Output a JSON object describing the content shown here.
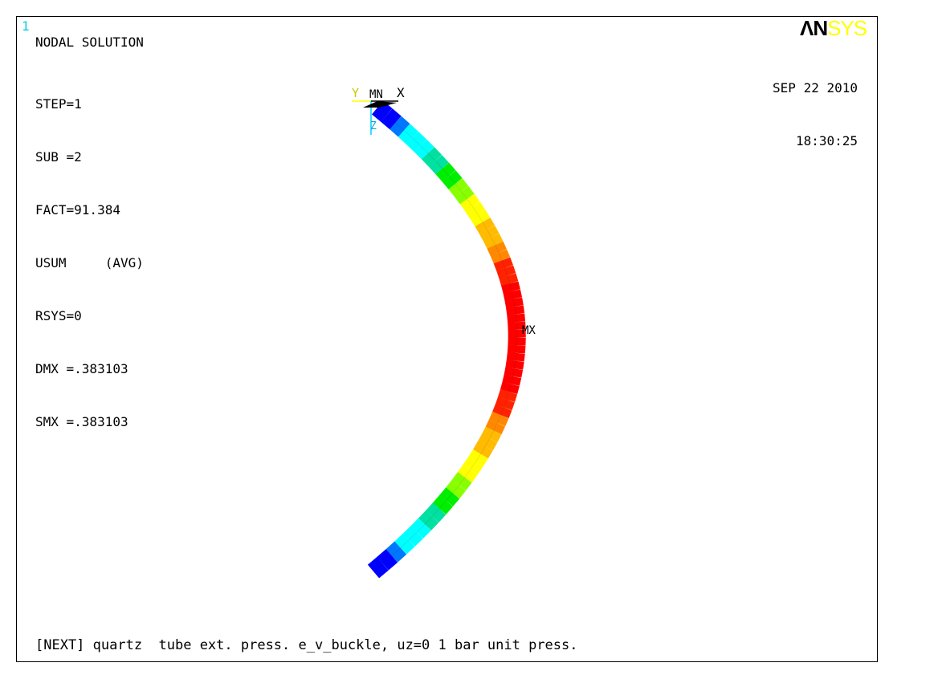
{
  "window_number": "1",
  "solution": {
    "title": "NODAL SOLUTION",
    "lines": [
      "STEP=1",
      "SUB =2",
      "FACT=91.384",
      "USUM     (AVG)",
      "RSYS=0",
      "DMX =.383103",
      "SMX =.383103"
    ]
  },
  "logo": {
    "part1": "ΛN",
    "part2": "SYS"
  },
  "timestamp": {
    "date": "SEP 22 2010",
    "time": "18:30:25"
  },
  "triad": {
    "y_label": "Y",
    "x_label": "X",
    "z_label": "Z",
    "min_label": "MN"
  },
  "max_label": "MX",
  "caption": "[NEXT] quartz  tube ext. press. e_v_buckle, uz=0 1 bar unit press.",
  "contour_colors": [
    "#0000ff",
    "#0077ff",
    "#00ffff",
    "#00e0a0",
    "#00ee00",
    "#88ff00",
    "#ffff00",
    "#ffbb00",
    "#ff8800",
    "#ff2200",
    "#ff0000"
  ]
}
